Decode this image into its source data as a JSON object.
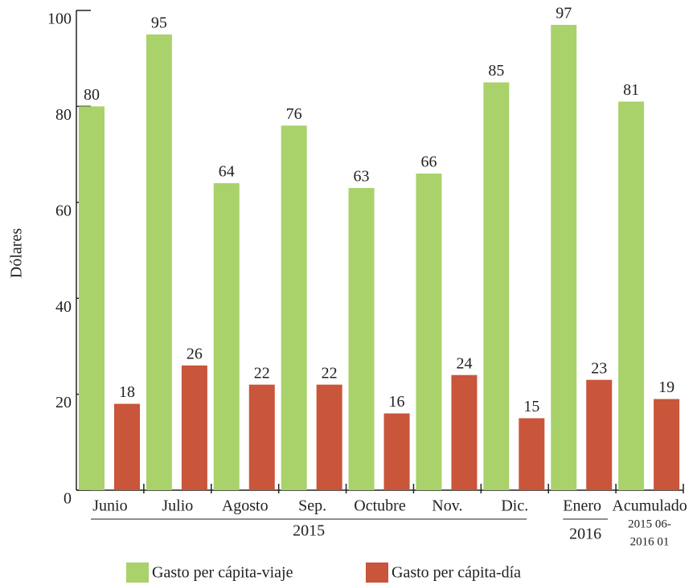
{
  "chart_data": {
    "type": "bar",
    "y_label": "Dólares",
    "categories": [
      "Junio",
      "Julio",
      "Agosto",
      "Sep.",
      "Octubre",
      "Nov.",
      "Dic.",
      "Enero",
      "Acumulado"
    ],
    "category_groups": [
      "2015",
      "2016"
    ],
    "category_note": [
      "2015 06-",
      "2016 01"
    ],
    "series": [
      {
        "name": "Gasto per cápita-viaje",
        "color": "#a9d26b",
        "values": [
          80,
          95,
          64,
          76,
          63,
          66,
          85,
          97,
          81
        ]
      },
      {
        "name": "Gasto per cápita-día",
        "color": "#c9553a",
        "values": [
          18,
          26,
          22,
          22,
          16,
          24,
          15,
          23,
          19
        ]
      }
    ],
    "ylim": [
      0,
      100
    ],
    "yticks": [
      0,
      20,
      40,
      60,
      80,
      100
    ],
    "legend": "bottom"
  }
}
